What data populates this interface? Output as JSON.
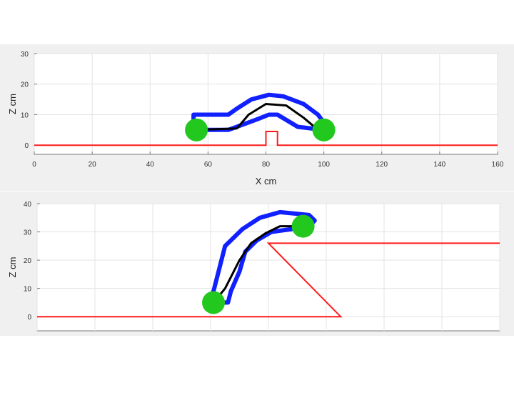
{
  "colors": {
    "figure_background": "#f0f0f0",
    "axes_background": "#ffffff",
    "grid": "#e3e3e3",
    "axis": "#777777",
    "ground": "#ff1a1a",
    "outline": "#1020ff",
    "spine": "#000000",
    "wheel": "#22c81e"
  },
  "chart_data": [
    {
      "type": "line",
      "title": "",
      "xlabel": "X cm",
      "ylabel": "Z cm",
      "xlim": [
        0,
        160
      ],
      "ylim": [
        -3,
        30
      ],
      "grid": true,
      "xticks": [
        "0",
        "20",
        "40",
        "60",
        "80",
        "100",
        "120",
        "140",
        "160"
      ],
      "yticks": [
        "0",
        "10",
        "20",
        "30"
      ],
      "series": [
        {
          "role": "terrain",
          "x": [
            0,
            80,
            80,
            84,
            84,
            160
          ],
          "y": [
            0,
            0,
            4.5,
            4.5,
            0,
            0
          ]
        },
        {
          "role": "body-outline",
          "x": [
            55,
            67,
            77,
            81,
            84,
            91,
            100,
            101,
            98,
            93,
            86,
            81,
            75,
            70,
            67,
            55
          ],
          "y": [
            5,
            5,
            8.5,
            10,
            10,
            6,
            5,
            6,
            10,
            13.5,
            16,
            16.5,
            15,
            12,
            10,
            10
          ]
        },
        {
          "role": "spine",
          "x": [
            56,
            70,
            74,
            80,
            87,
            93,
            98
          ],
          "y": [
            5,
            5.5,
            10,
            13.5,
            13,
            9,
            5
          ]
        },
        {
          "role": "wheels",
          "x": [
            56,
            100
          ],
          "y": [
            5,
            5
          ]
        }
      ]
    },
    {
      "type": "line",
      "title": "",
      "xlabel": "",
      "ylabel": "Z cm",
      "xlim": [
        0,
        160
      ],
      "ylim": [
        -5,
        40
      ],
      "grid": true,
      "xticks": [],
      "yticks": [
        "0",
        "10",
        "20",
        "30",
        "40"
      ],
      "series": [
        {
          "role": "terrain",
          "x": [
            0,
            105,
            80,
            160
          ],
          "y": [
            0,
            0,
            26,
            26
          ]
        },
        {
          "role": "body-outline",
          "x": [
            60,
            66,
            67,
            70,
            72,
            76,
            81,
            88,
            94,
            96,
            94,
            84,
            77,
            71,
            65
          ],
          "y": [
            5,
            5,
            9,
            16,
            23,
            27,
            30,
            31,
            32,
            34,
            36,
            37,
            35,
            31,
            25
          ]
        },
        {
          "role": "spine",
          "x": [
            61,
            65,
            70,
            74,
            79,
            84,
            92
          ],
          "y": [
            5,
            10,
            20,
            26,
            29.5,
            32,
            32
          ]
        },
        {
          "role": "wheels",
          "x": [
            61,
            92
          ],
          "y": [
            5,
            32
          ]
        }
      ]
    }
  ]
}
